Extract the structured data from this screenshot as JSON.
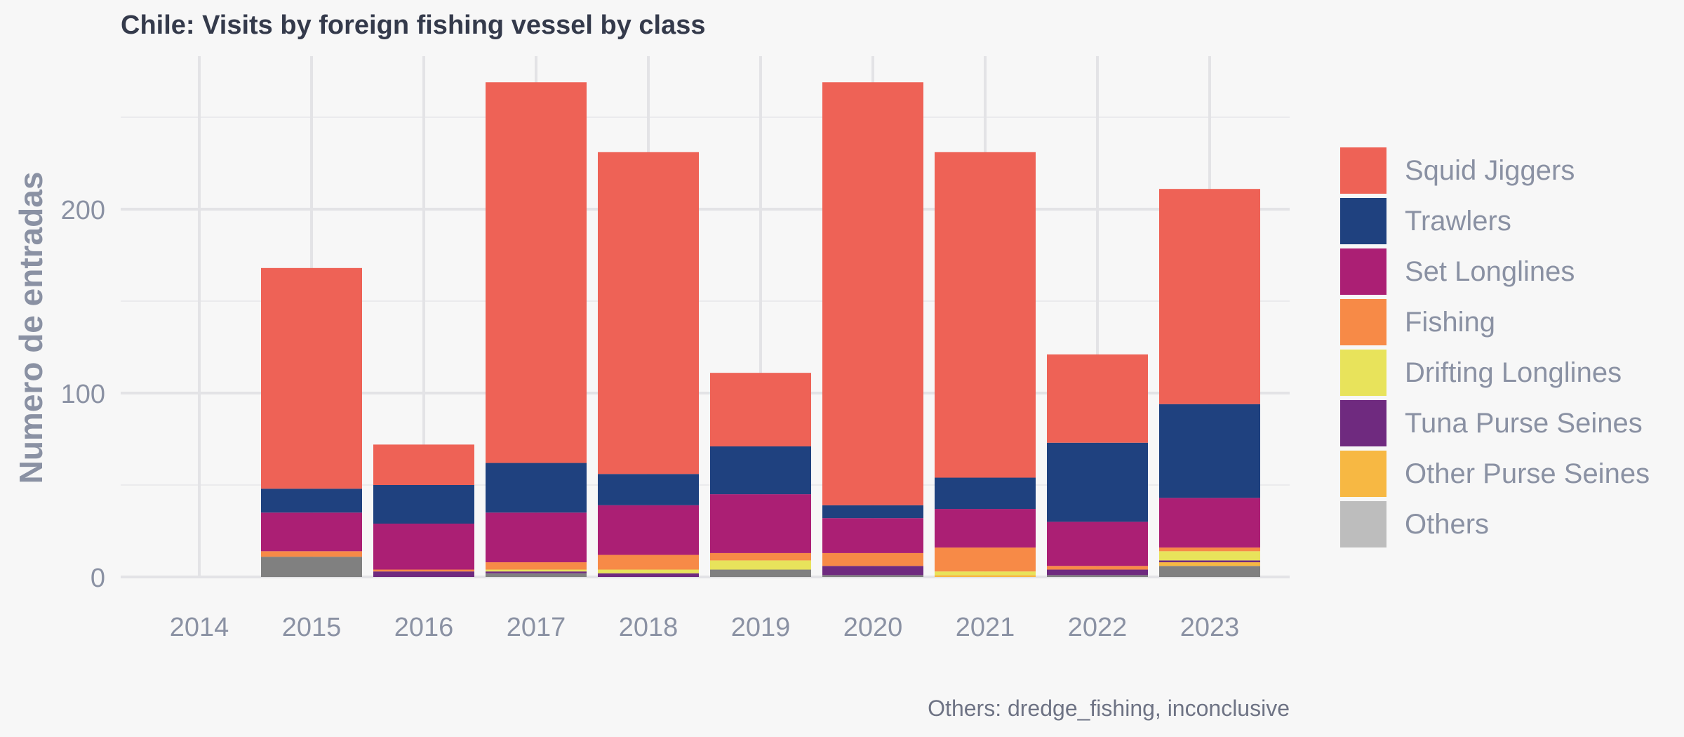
{
  "chart_data": {
    "type": "bar",
    "stacked": true,
    "title": "Chile: Visits by foreign fishing vessel by class",
    "xlabel": "",
    "ylabel": "Numero de entradas",
    "ylim": [
      0,
      270
    ],
    "yticks": [
      0,
      100,
      200
    ],
    "grid": true,
    "legend_position": "right",
    "caption": "Others: dredge_fishing, inconclusive",
    "categories": [
      "2014",
      "2015",
      "2016",
      "2017",
      "2018",
      "2019",
      "2020",
      "2021",
      "2022",
      "2023"
    ],
    "series": [
      {
        "name": "Others",
        "color": "#808080",
        "legend_color": "#bdbdbd",
        "values": [
          0,
          11,
          0,
          2,
          0,
          4,
          1,
          0,
          1,
          6
        ]
      },
      {
        "name": "Other Purse Seines",
        "color": "#f7b843",
        "values": [
          0,
          0,
          0,
          0,
          0,
          0,
          0,
          1,
          0,
          2
        ]
      },
      {
        "name": "Tuna Purse Seines",
        "color": "#6f2a7f",
        "values": [
          0,
          0,
          3,
          1,
          2,
          0,
          5,
          0,
          3,
          1
        ]
      },
      {
        "name": "Drifting Longlines",
        "color": "#e8e35b",
        "values": [
          0,
          0,
          0,
          1,
          2,
          5,
          0,
          2,
          0,
          5
        ]
      },
      {
        "name": "Fishing",
        "color": "#f78a47",
        "values": [
          0,
          3,
          1,
          4,
          8,
          4,
          7,
          13,
          2,
          2
        ]
      },
      {
        "name": "Set Longlines",
        "color": "#ab1f74",
        "values": [
          0,
          21,
          25,
          27,
          27,
          32,
          19,
          21,
          24,
          27
        ]
      },
      {
        "name": "Trawlers",
        "color": "#1f417f",
        "values": [
          0,
          13,
          21,
          27,
          17,
          26,
          7,
          17,
          43,
          51
        ]
      },
      {
        "name": "Squid Jiggers",
        "color": "#ee6256",
        "values": [
          0,
          120,
          22,
          207,
          175,
          40,
          230,
          177,
          48,
          117
        ]
      }
    ],
    "legend_order": [
      "Squid Jiggers",
      "Trawlers",
      "Set Longlines",
      "Fishing",
      "Drifting Longlines",
      "Tuna Purse Seines",
      "Other Purse Seines",
      "Others"
    ]
  }
}
